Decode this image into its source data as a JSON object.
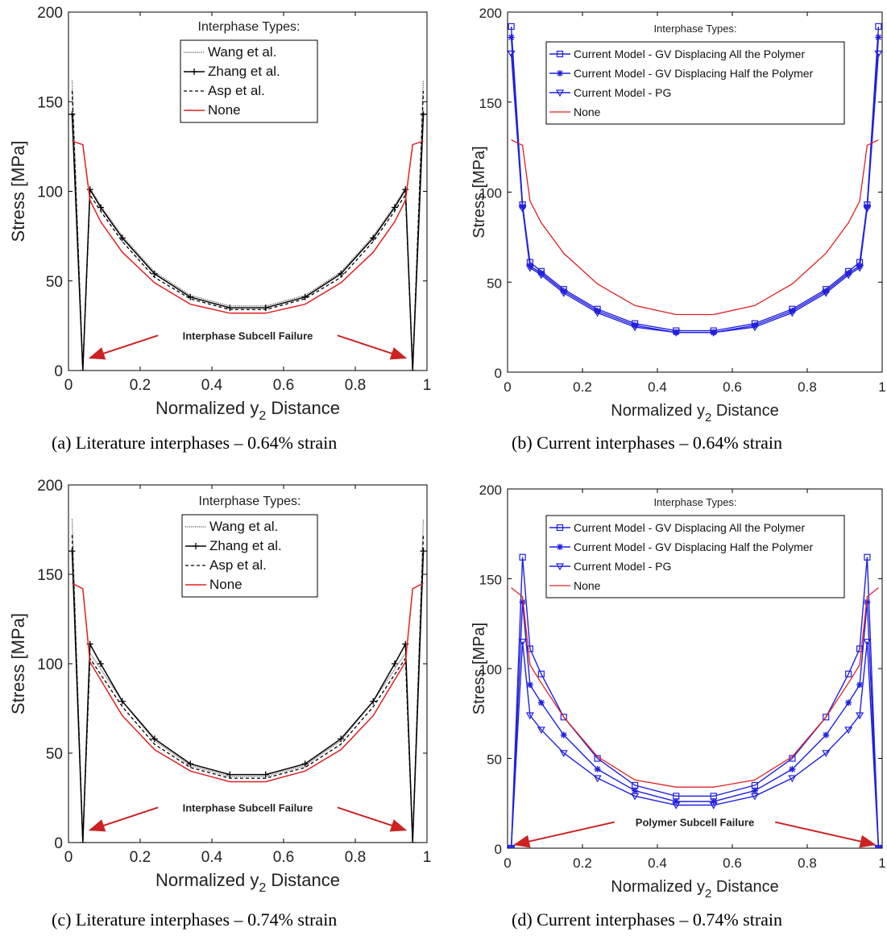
{
  "chart_data": [
    {
      "panel": "a",
      "type": "line",
      "caption": "(a)  Literature interphases – 0.64% strain",
      "xlabel": "Normalized y",
      "xlabel_sub": "2",
      "xlabel_tail": " Distance",
      "ylabel": "Stress [MPa]",
      "xlim": [
        0,
        1
      ],
      "ylim": [
        0,
        200
      ],
      "xticks": [
        0,
        0.2,
        0.4,
        0.6,
        0.8,
        1
      ],
      "xtick_labels": [
        "0",
        "0.2",
        "0.4",
        "0.6",
        "0.8",
        "1"
      ],
      "yticks": [
        0,
        50,
        100,
        150,
        200
      ],
      "ytick_labels": [
        "0",
        "50",
        "100",
        "150",
        "200"
      ],
      "grid": false,
      "legend": {
        "title": "Interphase Types:",
        "placement": "top-center"
      },
      "annotation": {
        "text": "Interphase Subcell Failure",
        "color": "#cc2222",
        "arrows_to": [
          [
            0.06,
            7
          ],
          [
            0.94,
            7
          ]
        ]
      },
      "series": [
        {
          "name": "Wang et al.",
          "color": "#555555",
          "dash": "1.2,1.2",
          "width": 1.2,
          "x": [
            0.01,
            0.04,
            0.06,
            0.09,
            0.15,
            0.24,
            0.34,
            0.45,
            0.55,
            0.66,
            0.76,
            0.85,
            0.91,
            0.94,
            0.96,
            0.99
          ],
          "y": [
            162,
            0,
            102,
            92,
            75,
            55,
            42,
            36,
            36,
            42,
            55,
            75,
            92,
            102,
            0,
            162
          ]
        },
        {
          "name": "Zhang et al.",
          "color": "#000000",
          "dash": "",
          "width": 1.5,
          "marker": "plus",
          "x": [
            0.01,
            0.04,
            0.06,
            0.09,
            0.15,
            0.24,
            0.34,
            0.45,
            0.55,
            0.66,
            0.76,
            0.85,
            0.91,
            0.94,
            0.96,
            0.99
          ],
          "y": [
            143,
            0,
            101,
            91,
            74,
            54,
            41,
            35,
            35,
            41,
            54,
            74,
            91,
            101,
            0,
            143
          ]
        },
        {
          "name": "Asp et al.",
          "color": "#000000",
          "dash": "4,3",
          "width": 1.3,
          "x": [
            0.01,
            0.04,
            0.06,
            0.09,
            0.15,
            0.24,
            0.34,
            0.45,
            0.55,
            0.66,
            0.76,
            0.85,
            0.91,
            0.94,
            0.96,
            0.99
          ],
          "y": [
            156,
            0,
            98,
            89,
            72,
            52,
            40,
            34,
            34,
            40,
            52,
            72,
            89,
            98,
            0,
            156
          ]
        },
        {
          "name": "None",
          "color": "#e02020",
          "dash": "",
          "width": 1.5,
          "x": [
            0.01,
            0.04,
            0.06,
            0.09,
            0.15,
            0.24,
            0.34,
            0.45,
            0.55,
            0.66,
            0.76,
            0.85,
            0.91,
            0.94,
            0.96,
            0.99
          ],
          "y": [
            128,
            126,
            95,
            83,
            66,
            49,
            37,
            32,
            32,
            37,
            49,
            66,
            83,
            95,
            126,
            128
          ]
        }
      ]
    },
    {
      "panel": "b",
      "type": "line",
      "caption": "(b)  Current interphases – 0.64% strain",
      "xlabel": "Normalized y",
      "xlabel_sub": "2",
      "xlabel_tail": " Distance",
      "ylabel": "Stress [MPa]",
      "xlim": [
        0,
        1
      ],
      "ylim": [
        0,
        200
      ],
      "xticks": [
        0,
        0.2,
        0.4,
        0.6,
        0.8,
        1
      ],
      "xtick_labels": [
        "0",
        "0.2",
        "0.4",
        "0.6",
        "0.8",
        "1"
      ],
      "yticks": [
        0,
        50,
        100,
        150,
        200
      ],
      "ytick_labels": [
        "0",
        "50",
        "100",
        "150",
        "200"
      ],
      "grid": false,
      "legend": {
        "title": "Interphase Types:",
        "placement": "top-center"
      },
      "series": [
        {
          "name": "Current Model - GV Displacing All the Polymer",
          "color": "#2020e0",
          "dash": "",
          "width": 1.4,
          "marker": "square",
          "x": [
            0.01,
            0.04,
            0.06,
            0.09,
            0.15,
            0.24,
            0.34,
            0.45,
            0.55,
            0.66,
            0.76,
            0.85,
            0.91,
            0.94,
            0.96,
            0.99
          ],
          "y": [
            192,
            93,
            61,
            56,
            46,
            35,
            27,
            23,
            23,
            27,
            35,
            46,
            56,
            61,
            93,
            192
          ]
        },
        {
          "name": "Current Model - GV Displacing Half the Polymer",
          "color": "#2020e0",
          "dash": "",
          "width": 1.4,
          "marker": "star",
          "x": [
            0.01,
            0.04,
            0.06,
            0.09,
            0.15,
            0.24,
            0.34,
            0.45,
            0.55,
            0.66,
            0.76,
            0.85,
            0.91,
            0.94,
            0.96,
            0.99
          ],
          "y": [
            186,
            92,
            59,
            55,
            45,
            34,
            26,
            22,
            22,
            26,
            34,
            45,
            55,
            59,
            92,
            186
          ]
        },
        {
          "name": "Current Model - PG",
          "color": "#2020e0",
          "dash": "",
          "width": 1.4,
          "marker": "triangle",
          "x": [
            0.01,
            0.04,
            0.06,
            0.09,
            0.15,
            0.24,
            0.34,
            0.45,
            0.55,
            0.66,
            0.76,
            0.85,
            0.91,
            0.94,
            0.96,
            0.99
          ],
          "y": [
            177,
            91,
            58,
            54,
            44,
            33,
            25,
            22,
            22,
            25,
            33,
            44,
            54,
            58,
            91,
            177
          ]
        },
        {
          "name": "None",
          "color": "#e02020",
          "dash": "",
          "width": 1.3,
          "x": [
            0.01,
            0.04,
            0.06,
            0.09,
            0.15,
            0.24,
            0.34,
            0.45,
            0.55,
            0.66,
            0.76,
            0.85,
            0.91,
            0.94,
            0.96,
            0.99
          ],
          "y": [
            129,
            126,
            95,
            83,
            66,
            49,
            37,
            32,
            32,
            37,
            49,
            66,
            83,
            95,
            126,
            129
          ]
        }
      ]
    },
    {
      "panel": "c",
      "type": "line",
      "caption": "(c)  Literature interphases – 0.74% strain",
      "xlabel": "Normalized y",
      "xlabel_sub": "2",
      "xlabel_tail": " Distance",
      "ylabel": "Stress [MPa]",
      "xlim": [
        0,
        1
      ],
      "ylim": [
        0,
        200
      ],
      "xticks": [
        0,
        0.2,
        0.4,
        0.6,
        0.8,
        1
      ],
      "xtick_labels": [
        "0",
        "0.2",
        "0.4",
        "0.6",
        "0.8",
        "1"
      ],
      "yticks": [
        0,
        50,
        100,
        150,
        200
      ],
      "ytick_labels": [
        "0",
        "50",
        "100",
        "150",
        "200"
      ],
      "grid": false,
      "legend": {
        "title": "Interphase Types:",
        "placement": "top-center"
      },
      "annotation": {
        "text": "Interphase Subcell Failure",
        "color": "#cc2222",
        "arrows_to": [
          [
            0.06,
            7
          ],
          [
            0.94,
            7
          ]
        ]
      },
      "series": [
        {
          "name": "Wang et al.",
          "color": "#555555",
          "dash": "1.2,1.2",
          "width": 1.2,
          "x": [
            0.01,
            0.04,
            0.06,
            0.09,
            0.15,
            0.24,
            0.34,
            0.45,
            0.55,
            0.66,
            0.76,
            0.85,
            0.91,
            0.94,
            0.96,
            0.99
          ],
          "y": [
            181,
            0,
            106,
            97,
            79,
            57,
            43,
            37,
            37,
            43,
            57,
            79,
            97,
            106,
            0,
            181
          ]
        },
        {
          "name": "Zhang et al.",
          "color": "#000000",
          "dash": "",
          "width": 1.5,
          "marker": "plus",
          "x": [
            0.01,
            0.04,
            0.06,
            0.09,
            0.15,
            0.24,
            0.34,
            0.45,
            0.55,
            0.66,
            0.76,
            0.85,
            0.91,
            0.94,
            0.96,
            0.99
          ],
          "y": [
            163,
            0,
            111,
            100,
            79,
            58,
            44,
            38,
            38,
            44,
            58,
            79,
            100,
            111,
            0,
            163
          ]
        },
        {
          "name": "Asp et al.",
          "color": "#000000",
          "dash": "4,3",
          "width": 1.3,
          "x": [
            0.01,
            0.04,
            0.06,
            0.09,
            0.15,
            0.24,
            0.34,
            0.45,
            0.55,
            0.66,
            0.76,
            0.85,
            0.91,
            0.94,
            0.96,
            0.99
          ],
          "y": [
            172,
            0,
            103,
            94,
            76,
            55,
            42,
            36,
            36,
            42,
            55,
            76,
            94,
            103,
            0,
            172
          ]
        },
        {
          "name": "None",
          "color": "#e02020",
          "dash": "",
          "width": 1.5,
          "x": [
            0.01,
            0.04,
            0.06,
            0.09,
            0.15,
            0.24,
            0.34,
            0.45,
            0.55,
            0.66,
            0.76,
            0.85,
            0.91,
            0.94,
            0.96,
            0.99
          ],
          "y": [
            145,
            142,
            101,
            91,
            71,
            52,
            40,
            34,
            34,
            40,
            52,
            71,
            91,
            101,
            142,
            145
          ]
        }
      ]
    },
    {
      "panel": "d",
      "type": "line",
      "caption": "(d)  Current interphases – 0.74% strain",
      "xlabel": "Normalized y",
      "xlabel_sub": "2",
      "xlabel_tail": " Distance",
      "ylabel": "Stress [MPa]",
      "xlim": [
        0,
        1
      ],
      "ylim": [
        0,
        200
      ],
      "xticks": [
        0,
        0.2,
        0.4,
        0.6,
        0.8,
        1
      ],
      "xtick_labels": [
        "0",
        "0.2",
        "0.4",
        "0.6",
        "0.8",
        "1"
      ],
      "yticks": [
        0,
        50,
        100,
        150,
        200
      ],
      "ytick_labels": [
        "0",
        "50",
        "100",
        "150",
        "200"
      ],
      "grid": false,
      "legend": {
        "title": "Interphase Types:",
        "placement": "top-center"
      },
      "annotation": {
        "text": "Polymer Subcell Failure",
        "color": "#cc2222",
        "arrows_to": [
          [
            0.02,
            2
          ],
          [
            0.98,
            2
          ]
        ]
      },
      "series": [
        {
          "name": "Current Model - GV Displacing All the Polymer",
          "color": "#2020e0",
          "dash": "",
          "width": 1.4,
          "marker": "square",
          "x": [
            0.01,
            0.04,
            0.06,
            0.09,
            0.15,
            0.24,
            0.34,
            0.45,
            0.55,
            0.66,
            0.76,
            0.85,
            0.91,
            0.94,
            0.96,
            0.99
          ],
          "y": [
            0,
            162,
            111,
            97,
            73,
            50,
            35,
            29,
            29,
            35,
            50,
            73,
            97,
            111,
            162,
            0
          ]
        },
        {
          "name": "Current Model - GV Displacing Half the Polymer",
          "color": "#2020e0",
          "dash": "",
          "width": 1.4,
          "marker": "star",
          "x": [
            0.01,
            0.04,
            0.06,
            0.09,
            0.15,
            0.24,
            0.34,
            0.45,
            0.55,
            0.66,
            0.76,
            0.85,
            0.91,
            0.94,
            0.96,
            0.99
          ],
          "y": [
            0,
            137,
            91,
            81,
            63,
            44,
            32,
            26,
            26,
            32,
            44,
            63,
            81,
            91,
            137,
            0
          ]
        },
        {
          "name": "Current Model - PG",
          "color": "#2020e0",
          "dash": "",
          "width": 1.4,
          "marker": "triangle",
          "x": [
            0.01,
            0.04,
            0.06,
            0.09,
            0.15,
            0.24,
            0.34,
            0.45,
            0.55,
            0.66,
            0.76,
            0.85,
            0.91,
            0.94,
            0.96,
            0.99
          ],
          "y": [
            0,
            115,
            74,
            66,
            53,
            39,
            29,
            24,
            24,
            29,
            39,
            53,
            66,
            74,
            115,
            0
          ]
        },
        {
          "name": "None",
          "color": "#e02020",
          "dash": "",
          "width": 1.3,
          "x": [
            0.01,
            0.04,
            0.06,
            0.09,
            0.15,
            0.24,
            0.34,
            0.45,
            0.55,
            0.66,
            0.76,
            0.85,
            0.91,
            0.94,
            0.96,
            0.99
          ],
          "y": [
            145,
            140,
            102,
            92,
            73,
            51,
            38,
            34,
            34,
            38,
            51,
            73,
            92,
            102,
            140,
            145
          ]
        }
      ]
    }
  ]
}
